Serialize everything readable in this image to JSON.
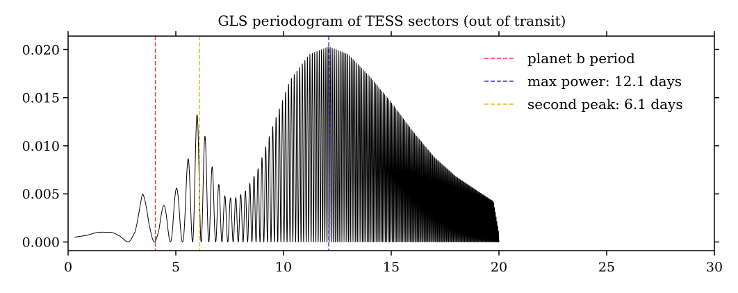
{
  "chart_data": {
    "type": "line",
    "title": "GLS periodogram of TESS sectors (out of transit)",
    "xlabel": "",
    "ylabel": "",
    "xlim": [
      0,
      30
    ],
    "ylim": [
      -0.0009,
      0.0214
    ],
    "x_ticks": [
      0,
      5,
      10,
      15,
      20,
      25,
      30
    ],
    "x_tick_labels": [
      "0",
      "5",
      "10",
      "15",
      "20",
      "25",
      "30"
    ],
    "y_ticks": [
      0.0,
      0.005,
      0.01,
      0.015,
      0.02
    ],
    "y_tick_labels": [
      "0.000",
      "0.005",
      "0.010",
      "0.015",
      "0.020"
    ],
    "grid": false,
    "legend_position": "top-right",
    "series": [
      {
        "color": "#000000",
        "x_range": [
          0.3,
          20.0
        ],
        "envelope_x": [
          0.3,
          0.9,
          1.3,
          1.8,
          2.3,
          2.6,
          2.85,
          3.1,
          3.45,
          3.75,
          4.0,
          4.2,
          4.5,
          4.9,
          5.3,
          5.6,
          5.9,
          6.1,
          6.4,
          6.8,
          7.3,
          7.7,
          8.2,
          8.8,
          9.5,
          10.3,
          11.2,
          12.1,
          13.0,
          14.0,
          15.0,
          16.0,
          17.0,
          18.0,
          19.0,
          19.75,
          20.0
        ],
        "envelope_upper": [
          0.0005,
          0.0007,
          0.001,
          0.0012,
          0.0018,
          0.003,
          0.0047,
          0.003,
          0.0051,
          0.0035,
          0.0038,
          0.0025,
          0.0042,
          0.0062,
          0.0045,
          0.0092,
          0.0128,
          0.0138,
          0.0105,
          0.0068,
          0.0047,
          0.0045,
          0.0052,
          0.0075,
          0.012,
          0.0168,
          0.0195,
          0.0203,
          0.0195,
          0.0172,
          0.0145,
          0.0115,
          0.0088,
          0.0068,
          0.0053,
          0.0042,
          0.0008
        ],
        "envelope_lower": [
          0.0,
          0.0,
          0.0,
          0.0,
          0.0,
          0.0,
          0.0,
          0.0,
          0.0,
          0.0,
          0.0,
          0.0,
          0.0,
          0.0,
          0.0,
          0.0,
          0.0,
          0.0,
          0.0,
          0.0,
          0.0,
          0.0,
          0.0,
          0.0,
          0.0,
          0.0,
          0.0,
          0.0,
          0.0,
          0.0,
          0.0,
          0.0,
          0.0,
          0.0,
          0.0,
          0.0,
          0.0
        ]
      }
    ],
    "vlines": [
      {
        "x": 4.05,
        "color": "#ff3333",
        "label": "planet b period"
      },
      {
        "x": 12.1,
        "color": "#3333dd",
        "label": "max power: 12.1 days"
      },
      {
        "x": 6.1,
        "color": "#d4c419",
        "label": "second peak: 6.1 days"
      }
    ]
  }
}
